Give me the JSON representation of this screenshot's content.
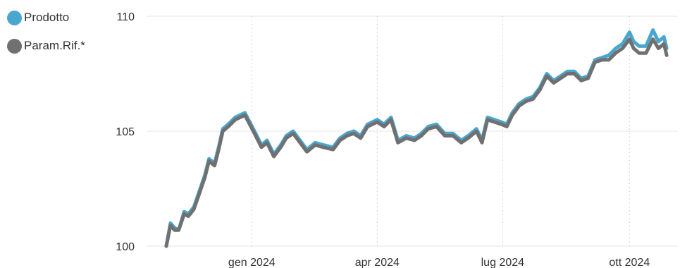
{
  "chart_data": {
    "type": "line",
    "xlabel": "",
    "ylabel": "",
    "ylim": [
      100,
      110
    ],
    "y_ticks": [
      100,
      105,
      110
    ],
    "x_ticks": [
      {
        "date": "2024-01-01",
        "label": "gen 2024"
      },
      {
        "date": "2024-04-01",
        "label": "apr 2024"
      },
      {
        "date": "2024-07-01",
        "label": "lug 2024"
      },
      {
        "date": "2024-10-01",
        "label": "ott 2024"
      }
    ],
    "x_range": [
      "2023-10-31",
      "2024-10-31"
    ],
    "grid": "horizontal solid, vertical dotted",
    "legend": "top-left",
    "series": [
      {
        "name": "Prodotto",
        "color": "#4aa6cf",
        "points": [
          [
            "2023-10-31",
            100.0
          ],
          [
            "2023-11-03",
            101.0
          ],
          [
            "2023-11-06",
            100.8
          ],
          [
            "2023-11-09",
            100.7
          ],
          [
            "2023-11-13",
            101.5
          ],
          [
            "2023-11-16",
            101.4
          ],
          [
            "2023-11-20",
            101.7
          ],
          [
            "2023-11-24",
            102.4
          ],
          [
            "2023-11-28",
            103.1
          ],
          [
            "2023-12-01",
            103.8
          ],
          [
            "2023-12-05",
            103.6
          ],
          [
            "2023-12-08",
            104.3
          ],
          [
            "2023-12-11",
            105.1
          ],
          [
            "2023-12-15",
            105.3
          ],
          [
            "2023-12-20",
            105.6
          ],
          [
            "2023-12-27",
            105.8
          ],
          [
            "2024-01-03",
            105.0
          ],
          [
            "2024-01-08",
            104.4
          ],
          [
            "2024-01-12",
            104.6
          ],
          [
            "2024-01-17",
            104.0
          ],
          [
            "2024-01-22",
            104.4
          ],
          [
            "2024-01-26",
            104.8
          ],
          [
            "2024-01-31",
            105.0
          ],
          [
            "2024-02-05",
            104.6
          ],
          [
            "2024-02-10",
            104.2
          ],
          [
            "2024-02-16",
            104.5
          ],
          [
            "2024-02-22",
            104.4
          ],
          [
            "2024-02-29",
            104.3
          ],
          [
            "2024-03-05",
            104.7
          ],
          [
            "2024-03-10",
            104.9
          ],
          [
            "2024-03-15",
            105.0
          ],
          [
            "2024-03-20",
            104.8
          ],
          [
            "2024-03-25",
            105.3
          ],
          [
            "2024-04-01",
            105.5
          ],
          [
            "2024-04-06",
            105.3
          ],
          [
            "2024-04-11",
            105.6
          ],
          [
            "2024-04-16",
            104.6
          ],
          [
            "2024-04-22",
            104.8
          ],
          [
            "2024-04-28",
            104.7
          ],
          [
            "2024-05-03",
            104.9
          ],
          [
            "2024-05-08",
            105.2
          ],
          [
            "2024-05-14",
            105.3
          ],
          [
            "2024-05-20",
            104.9
          ],
          [
            "2024-05-26",
            104.9
          ],
          [
            "2024-06-01",
            104.6
          ],
          [
            "2024-06-06",
            104.8
          ],
          [
            "2024-06-12",
            105.1
          ],
          [
            "2024-06-16",
            104.6
          ],
          [
            "2024-06-20",
            105.6
          ],
          [
            "2024-06-25",
            105.5
          ],
          [
            "2024-06-30",
            105.4
          ],
          [
            "2024-07-04",
            105.3
          ],
          [
            "2024-07-08",
            105.8
          ],
          [
            "2024-07-13",
            106.2
          ],
          [
            "2024-07-18",
            106.4
          ],
          [
            "2024-07-23",
            106.5
          ],
          [
            "2024-07-28",
            106.9
          ],
          [
            "2024-08-02",
            107.5
          ],
          [
            "2024-08-07",
            107.2
          ],
          [
            "2024-08-12",
            107.4
          ],
          [
            "2024-08-17",
            107.6
          ],
          [
            "2024-08-22",
            107.6
          ],
          [
            "2024-08-27",
            107.3
          ],
          [
            "2024-09-01",
            107.4
          ],
          [
            "2024-09-06",
            108.1
          ],
          [
            "2024-09-11",
            108.2
          ],
          [
            "2024-09-16",
            108.3
          ],
          [
            "2024-09-21",
            108.6
          ],
          [
            "2024-09-26",
            108.8
          ],
          [
            "2024-10-01",
            109.3
          ],
          [
            "2024-10-04",
            108.9
          ],
          [
            "2024-10-08",
            108.7
          ],
          [
            "2024-10-13",
            108.7
          ],
          [
            "2024-10-18",
            109.4
          ],
          [
            "2024-10-22",
            108.9
          ],
          [
            "2024-10-26",
            109.1
          ],
          [
            "2024-10-28",
            108.6
          ]
        ]
      },
      {
        "name": "Param.Rif.*",
        "color": "#707070",
        "points": [
          [
            "2023-10-31",
            100.0
          ],
          [
            "2023-11-03",
            100.9
          ],
          [
            "2023-11-06",
            100.7
          ],
          [
            "2023-11-09",
            100.7
          ],
          [
            "2023-11-13",
            101.4
          ],
          [
            "2023-11-16",
            101.3
          ],
          [
            "2023-11-20",
            101.6
          ],
          [
            "2023-11-24",
            102.3
          ],
          [
            "2023-11-28",
            103.0
          ],
          [
            "2023-12-01",
            103.7
          ],
          [
            "2023-12-05",
            103.5
          ],
          [
            "2023-12-08",
            104.2
          ],
          [
            "2023-12-11",
            105.0
          ],
          [
            "2023-12-15",
            105.2
          ],
          [
            "2023-12-20",
            105.5
          ],
          [
            "2023-12-27",
            105.7
          ],
          [
            "2024-01-03",
            104.9
          ],
          [
            "2024-01-08",
            104.3
          ],
          [
            "2024-01-12",
            104.5
          ],
          [
            "2024-01-17",
            103.9
          ],
          [
            "2024-01-22",
            104.3
          ],
          [
            "2024-01-26",
            104.7
          ],
          [
            "2024-01-31",
            104.9
          ],
          [
            "2024-02-05",
            104.5
          ],
          [
            "2024-02-10",
            104.1
          ],
          [
            "2024-02-16",
            104.4
          ],
          [
            "2024-02-22",
            104.3
          ],
          [
            "2024-02-29",
            104.2
          ],
          [
            "2024-03-05",
            104.6
          ],
          [
            "2024-03-10",
            104.8
          ],
          [
            "2024-03-15",
            104.9
          ],
          [
            "2024-03-20",
            104.7
          ],
          [
            "2024-03-25",
            105.2
          ],
          [
            "2024-04-01",
            105.4
          ],
          [
            "2024-04-06",
            105.2
          ],
          [
            "2024-04-11",
            105.5
          ],
          [
            "2024-04-16",
            104.5
          ],
          [
            "2024-04-22",
            104.7
          ],
          [
            "2024-04-28",
            104.6
          ],
          [
            "2024-05-03",
            104.8
          ],
          [
            "2024-05-08",
            105.1
          ],
          [
            "2024-05-14",
            105.2
          ],
          [
            "2024-05-20",
            104.8
          ],
          [
            "2024-05-26",
            104.8
          ],
          [
            "2024-06-01",
            104.5
          ],
          [
            "2024-06-06",
            104.7
          ],
          [
            "2024-06-12",
            105.0
          ],
          [
            "2024-06-16",
            104.5
          ],
          [
            "2024-06-20",
            105.5
          ],
          [
            "2024-06-25",
            105.4
          ],
          [
            "2024-06-30",
            105.3
          ],
          [
            "2024-07-04",
            105.2
          ],
          [
            "2024-07-08",
            105.7
          ],
          [
            "2024-07-13",
            106.1
          ],
          [
            "2024-07-18",
            106.3
          ],
          [
            "2024-07-23",
            106.4
          ],
          [
            "2024-07-28",
            106.8
          ],
          [
            "2024-08-02",
            107.4
          ],
          [
            "2024-08-07",
            107.1
          ],
          [
            "2024-08-12",
            107.3
          ],
          [
            "2024-08-17",
            107.5
          ],
          [
            "2024-08-22",
            107.5
          ],
          [
            "2024-08-27",
            107.2
          ],
          [
            "2024-09-01",
            107.3
          ],
          [
            "2024-09-06",
            108.0
          ],
          [
            "2024-09-11",
            108.1
          ],
          [
            "2024-09-16",
            108.1
          ],
          [
            "2024-09-21",
            108.4
          ],
          [
            "2024-09-26",
            108.6
          ],
          [
            "2024-10-01",
            109.0
          ],
          [
            "2024-10-04",
            108.6
          ],
          [
            "2024-10-08",
            108.4
          ],
          [
            "2024-10-13",
            108.4
          ],
          [
            "2024-10-18",
            109.0
          ],
          [
            "2024-10-22",
            108.6
          ],
          [
            "2024-10-26",
            108.8
          ],
          [
            "2024-10-28",
            108.3
          ]
        ]
      }
    ]
  }
}
